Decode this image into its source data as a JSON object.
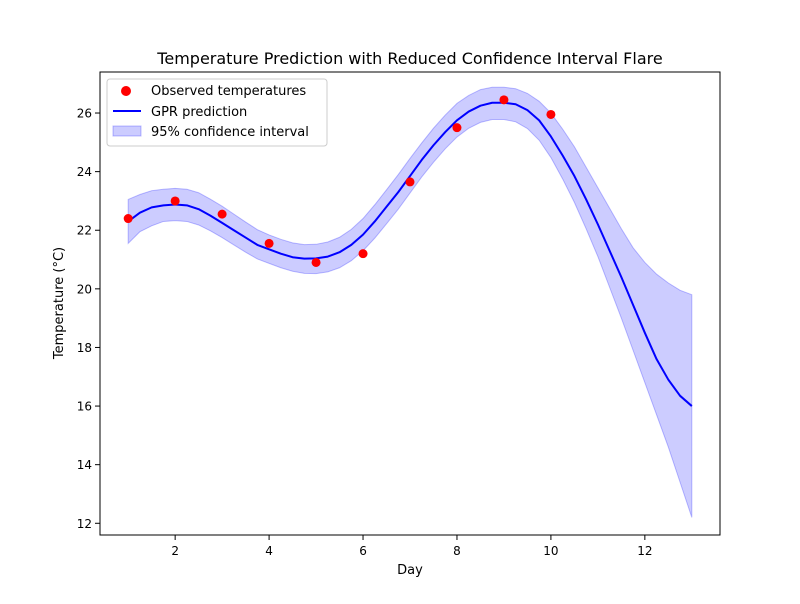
{
  "chart_data": {
    "type": "scatter",
    "title": "Temperature Prediction with Reduced Confidence Interval Flare",
    "xlabel": "Day",
    "ylabel": "Temperature (°C)",
    "xlim": [
      0.4,
      13.6
    ],
    "ylim": [
      11.6,
      27.4
    ],
    "xticks": [
      2,
      4,
      6,
      8,
      10,
      12
    ],
    "yticks": [
      12,
      14,
      16,
      18,
      20,
      22,
      24,
      26
    ],
    "grid": false,
    "legend_position": "upper-left",
    "colors": {
      "observed": "#ff0000",
      "prediction": "#0000ff",
      "interval_fill": "#0000ff",
      "interval_edge": "#0000ff"
    },
    "series": [
      {
        "name": "Observed temperatures",
        "kind": "scatter",
        "x": [
          1,
          2,
          3,
          4,
          5,
          6,
          7,
          8,
          9,
          10
        ],
        "y": [
          22.4,
          23.0,
          22.55,
          21.55,
          20.9,
          21.2,
          23.65,
          25.5,
          26.45,
          25.95
        ]
      },
      {
        "name": "GPR prediction",
        "kind": "line",
        "x": [
          1,
          1.25,
          1.5,
          1.75,
          2,
          2.25,
          2.5,
          2.75,
          3,
          3.25,
          3.5,
          3.75,
          4,
          4.25,
          4.5,
          4.75,
          5,
          5.25,
          5.5,
          5.75,
          6,
          6.25,
          6.5,
          6.75,
          7,
          7.25,
          7.5,
          7.75,
          8,
          8.25,
          8.5,
          8.75,
          9,
          9.25,
          9.5,
          9.75,
          10,
          10.25,
          10.5,
          10.75,
          11,
          11.25,
          11.5,
          11.75,
          12,
          12.25,
          12.5,
          12.75,
          13
        ],
        "y": [
          22.3,
          22.6,
          22.78,
          22.85,
          22.88,
          22.85,
          22.72,
          22.5,
          22.25,
          22.0,
          21.75,
          21.5,
          21.35,
          21.2,
          21.08,
          21.03,
          21.04,
          21.1,
          21.25,
          21.5,
          21.85,
          22.3,
          22.8,
          23.3,
          23.85,
          24.4,
          24.9,
          25.35,
          25.75,
          26.05,
          26.25,
          26.35,
          26.35,
          26.3,
          26.1,
          25.75,
          25.2,
          24.55,
          23.85,
          23.05,
          22.2,
          21.3,
          20.4,
          19.45,
          18.5,
          17.6,
          16.9,
          16.35,
          16.0
        ]
      },
      {
        "name": "95% confidence interval",
        "kind": "band",
        "x": [
          1,
          1.25,
          1.5,
          1.75,
          2,
          2.25,
          2.5,
          2.75,
          3,
          3.25,
          3.5,
          3.75,
          4,
          4.25,
          4.5,
          4.75,
          5,
          5.25,
          5.5,
          5.75,
          6,
          6.25,
          6.5,
          6.75,
          7,
          7.25,
          7.5,
          7.75,
          8,
          8.25,
          8.5,
          8.75,
          9,
          9.25,
          9.5,
          9.75,
          10,
          10.25,
          10.5,
          10.75,
          11,
          11.25,
          11.5,
          11.75,
          12,
          12.25,
          12.5,
          12.75,
          13
        ],
        "lower": [
          21.55,
          21.95,
          22.15,
          22.3,
          22.33,
          22.3,
          22.18,
          21.98,
          21.75,
          21.5,
          21.25,
          21.02,
          20.87,
          20.72,
          20.6,
          20.53,
          20.52,
          20.58,
          20.72,
          20.96,
          21.3,
          21.73,
          22.22,
          22.72,
          23.27,
          23.82,
          24.32,
          24.78,
          25.18,
          25.48,
          25.68,
          25.78,
          25.78,
          25.7,
          25.47,
          25.07,
          24.48,
          23.75,
          22.95,
          22.05,
          21.1,
          20.05,
          19.0,
          17.9,
          16.8,
          15.7,
          14.6,
          13.4,
          12.2
        ],
        "upper": [
          23.05,
          23.22,
          23.35,
          23.4,
          23.43,
          23.4,
          23.28,
          23.06,
          22.82,
          22.55,
          22.28,
          22.02,
          21.84,
          21.69,
          21.57,
          21.51,
          21.52,
          21.6,
          21.76,
          22.03,
          22.4,
          22.87,
          23.38,
          23.9,
          24.45,
          24.98,
          25.48,
          25.93,
          26.33,
          26.6,
          26.8,
          26.88,
          26.88,
          26.83,
          26.67,
          26.4,
          26.0,
          25.45,
          24.85,
          24.15,
          23.45,
          22.75,
          22.05,
          21.4,
          20.9,
          20.5,
          20.2,
          19.95,
          19.8
        ]
      }
    ]
  }
}
